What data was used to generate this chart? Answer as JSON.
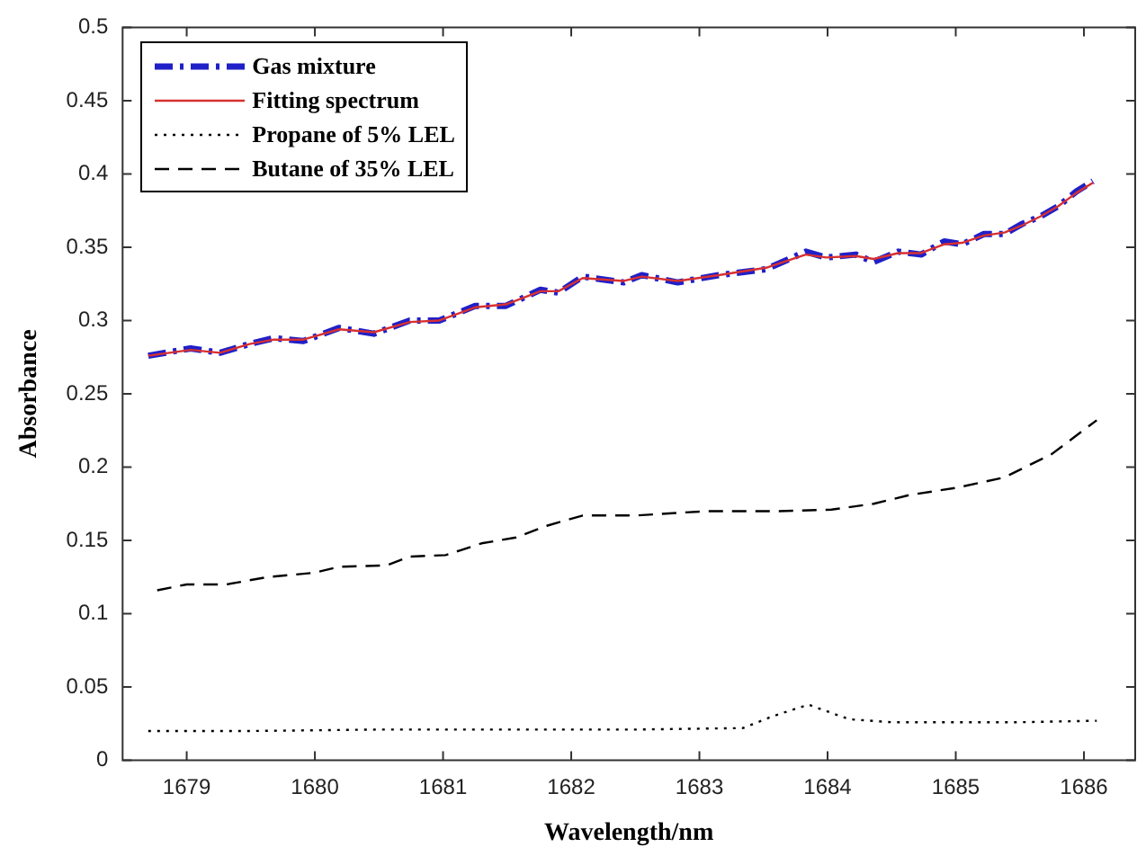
{
  "chart_data": {
    "type": "line",
    "xlabel": "Wavelength/nm",
    "ylabel": "Absorbance",
    "xlim": [
      1678.5,
      1686.4
    ],
    "ylim": [
      0,
      0.5
    ],
    "xticks": [
      1679,
      1680,
      1681,
      1682,
      1683,
      1684,
      1685,
      1686
    ],
    "yticks": [
      0,
      0.05,
      0.1,
      0.15,
      0.2,
      0.25,
      0.3,
      0.35,
      0.4,
      0.45,
      0.5
    ],
    "legend": "top left",
    "series": [
      {
        "name": "Gas mixture",
        "color": "#2020c8",
        "line_style": "dashdot",
        "x": [
          1678.7,
          1679.03,
          1679.26,
          1679.49,
          1679.68,
          1679.91,
          1680.19,
          1680.46,
          1680.74,
          1680.97,
          1681.25,
          1681.49,
          1681.76,
          1681.9,
          1682.09,
          1682.41,
          1682.55,
          1682.83,
          1683.15,
          1683.52,
          1683.83,
          1683.99,
          1684.22,
          1684.36,
          1684.55,
          1684.73,
          1684.91,
          1685.05,
          1685.22,
          1685.38,
          1685.52,
          1685.66,
          1685.8,
          1685.94,
          1686.07
        ],
        "values": [
          0.276,
          0.281,
          0.278,
          0.284,
          0.288,
          0.286,
          0.295,
          0.291,
          0.3,
          0.3,
          0.31,
          0.31,
          0.321,
          0.319,
          0.33,
          0.326,
          0.331,
          0.326,
          0.331,
          0.335,
          0.347,
          0.343,
          0.345,
          0.34,
          0.347,
          0.345,
          0.354,
          0.352,
          0.359,
          0.359,
          0.366,
          0.371,
          0.378,
          0.388,
          0.395
        ]
      },
      {
        "name": "Fitting spectrum",
        "color": "#d83030",
        "line_style": "solid",
        "x": [
          1678.7,
          1679.03,
          1679.26,
          1679.49,
          1679.68,
          1679.91,
          1680.19,
          1680.46,
          1680.74,
          1680.97,
          1681.25,
          1681.49,
          1681.76,
          1681.9,
          1682.09,
          1682.41,
          1682.55,
          1682.83,
          1683.15,
          1683.52,
          1683.83,
          1683.99,
          1684.22,
          1684.36,
          1684.55,
          1684.73,
          1684.91,
          1685.05,
          1685.22,
          1685.38,
          1685.52,
          1685.66,
          1685.8,
          1685.94,
          1686.07
        ],
        "values": [
          0.276,
          0.28,
          0.278,
          0.284,
          0.287,
          0.287,
          0.294,
          0.292,
          0.299,
          0.3,
          0.309,
          0.311,
          0.32,
          0.32,
          0.329,
          0.327,
          0.33,
          0.327,
          0.331,
          0.336,
          0.345,
          0.343,
          0.344,
          0.342,
          0.346,
          0.346,
          0.352,
          0.353,
          0.358,
          0.36,
          0.365,
          0.371,
          0.378,
          0.387,
          0.394
        ]
      },
      {
        "name": "Propane of 5% LEL",
        "color": "#000000",
        "line_style": "dotted",
        "x": [
          1678.7,
          1679.5,
          1680.5,
          1681.5,
          1682.5,
          1683.34,
          1683.57,
          1683.85,
          1684.17,
          1684.5,
          1685.0,
          1685.5,
          1686.1
        ],
        "values": [
          0.02,
          0.02,
          0.021,
          0.021,
          0.021,
          0.022,
          0.03,
          0.038,
          0.028,
          0.026,
          0.026,
          0.026,
          0.027
        ]
      },
      {
        "name": "Butane of 35% LEL",
        "color": "#000000",
        "line_style": "dashed",
        "x": [
          1678.77,
          1679.0,
          1679.31,
          1679.63,
          1680.0,
          1680.19,
          1680.56,
          1680.74,
          1681.02,
          1681.3,
          1681.57,
          1681.81,
          1682.09,
          1682.5,
          1683.06,
          1683.62,
          1684.03,
          1684.36,
          1684.64,
          1685.01,
          1685.38,
          1685.75,
          1686.1
        ],
        "values": [
          0.116,
          0.12,
          0.12,
          0.125,
          0.128,
          0.132,
          0.133,
          0.139,
          0.14,
          0.148,
          0.152,
          0.16,
          0.167,
          0.167,
          0.17,
          0.17,
          0.171,
          0.175,
          0.181,
          0.186,
          0.193,
          0.209,
          0.232
        ]
      }
    ]
  }
}
